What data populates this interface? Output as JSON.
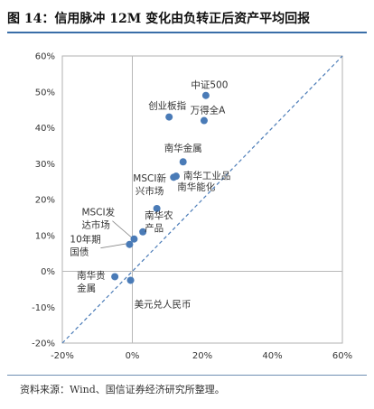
{
  "figure": {
    "title": "图 14：信用脉冲 12M 变化由负转正后资产平均回报",
    "source": "资料来源：Wind、国信证券经济研究所整理。"
  },
  "chart_data": {
    "type": "scatter",
    "title": "图 14：信用脉冲 12M 变化由负转正后资产平均回报",
    "xlabel": "",
    "ylabel": "",
    "xlim": [
      -0.2,
      0.6
    ],
    "ylim": [
      -0.2,
      0.6
    ],
    "x_ticks": [
      "-20%",
      "0%",
      "20%",
      "40%",
      "60%"
    ],
    "y_ticks": [
      "60%",
      "50%",
      "40%",
      "30%",
      "20%",
      "10%",
      "0%",
      "-10%",
      "-20%"
    ],
    "grid": false,
    "reference_line": "y = x (dashed diagonal)",
    "marker_color": "#4a7bb7",
    "diagonal_color": "#4a7bb7",
    "points": [
      {
        "name": "中证500",
        "label_lines": [
          "中证500"
        ],
        "x": 0.21,
        "y": 0.49
      },
      {
        "name": "万得全A",
        "label_lines": [
          "万得全A"
        ],
        "x": 0.205,
        "y": 0.42
      },
      {
        "name": "创业板指",
        "label_lines": [
          "创业板指"
        ],
        "x": 0.105,
        "y": 0.43
      },
      {
        "name": "南华金属",
        "label_lines": [
          "南华金属"
        ],
        "x": 0.145,
        "y": 0.305
      },
      {
        "name": "南华工业品",
        "label_lines": [
          "南华工业品"
        ],
        "x": 0.125,
        "y": 0.265
      },
      {
        "name": "南华能化",
        "label_lines": [
          "南华能化"
        ],
        "x": 0.118,
        "y": 0.262
      },
      {
        "name": "MSCI新兴市场",
        "label_lines": [
          "MSCI新",
          "兴市场"
        ],
        "x": 0.07,
        "y": 0.175
      },
      {
        "name": "南华农产品",
        "label_lines": [
          "南华农",
          "产品"
        ],
        "x": 0.03,
        "y": 0.11
      },
      {
        "name": "MSCI发达市场",
        "label_lines": [
          "MSCI发",
          "达市场"
        ],
        "x": 0.005,
        "y": 0.09
      },
      {
        "name": "10年期国债",
        "label_lines": [
          "10年期",
          "国债"
        ],
        "x": -0.008,
        "y": 0.075
      },
      {
        "name": "南华贵金属",
        "label_lines": [
          "南华贵",
          "金属"
        ],
        "x": -0.05,
        "y": -0.015
      },
      {
        "name": "美元兑人民币",
        "label_lines": [
          "美元兑人民币"
        ],
        "x": -0.005,
        "y": -0.025
      }
    ]
  }
}
